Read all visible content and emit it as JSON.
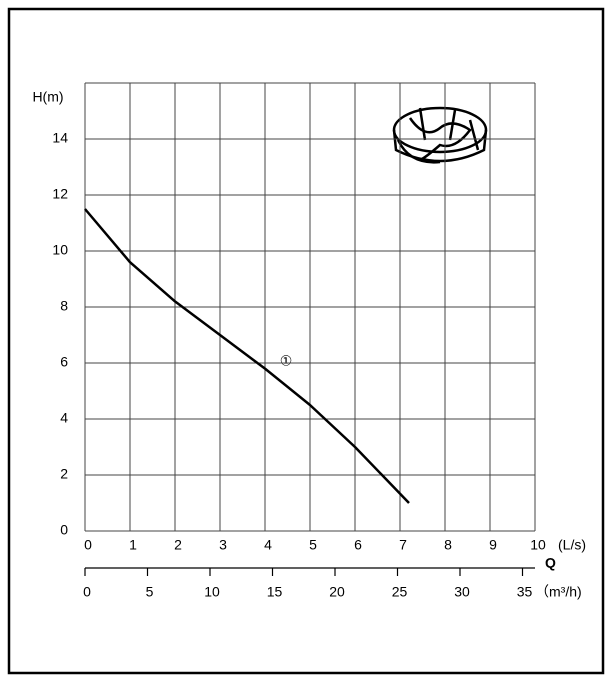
{
  "chart_data": {
    "type": "line",
    "y_label": "H(m)",
    "x_label": "(L/s)",
    "x2_name": "Q",
    "x2_label": "（m³/h)",
    "annotation": "①",
    "xlim": [
      0,
      10
    ],
    "xticks": [
      0,
      1,
      2,
      3,
      4,
      5,
      6,
      7,
      8,
      9,
      10
    ],
    "ylim": [
      0,
      16
    ],
    "yticks": [
      0,
      2,
      4,
      6,
      8,
      10,
      12,
      14
    ],
    "x2lim": [
      0,
      36
    ],
    "x2ticks": [
      0,
      5,
      10,
      15,
      20,
      25,
      30,
      35
    ],
    "grid": true,
    "series": [
      {
        "color": "#000000",
        "x": [
          0,
          1,
          1.5,
          2,
          3,
          4,
          5,
          6,
          7.2
        ],
        "values": [
          11.5,
          9.6,
          8.9,
          8.2,
          7.0,
          5.8,
          4.5,
          3.0,
          1.0
        ]
      }
    ]
  }
}
